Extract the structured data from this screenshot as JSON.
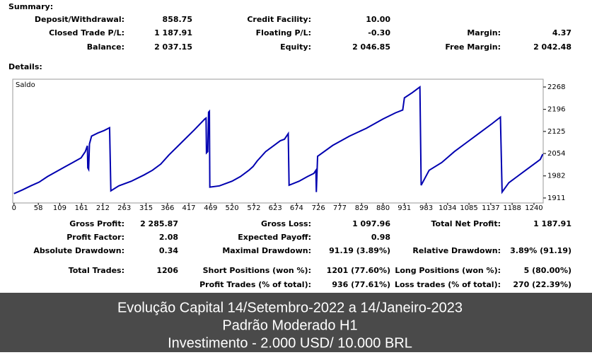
{
  "summary": {
    "title": "Summary:",
    "rows": [
      [
        {
          "label": "Deposit/Withdrawal:",
          "value": "858.75"
        },
        {
          "label": "Credit Facility:",
          "value": "10.00"
        }
      ],
      [
        {
          "label": "Closed Trade P/L:",
          "value": "1 187.91"
        },
        {
          "label": "Floating P/L:",
          "value": "-0.30"
        },
        {
          "label": "Margin:",
          "value": "4.37"
        }
      ],
      [
        {
          "label": "Balance:",
          "value": "2 037.15"
        },
        {
          "label": "Equity:",
          "value": "2 046.85"
        },
        {
          "label": "Free Margin:",
          "value": "2 042.48"
        }
      ]
    ]
  },
  "details": {
    "title": "Details:",
    "rows": [
      [
        {
          "label": "Gross Profit:",
          "value": "2 285.87"
        },
        {
          "label": "Gross Loss:",
          "value": "1 097.96"
        },
        {
          "label": "Total Net Profit:",
          "value": "1 187.91"
        }
      ],
      [
        {
          "label": "Profit Factor:",
          "value": "2.08"
        },
        {
          "label": "Expected Payoff:",
          "value": "0.98"
        }
      ],
      [
        {
          "label": "Absolute Drawdown:",
          "value": "0.34"
        },
        {
          "label": "Maximal Drawdown:",
          "value": "91.19 (3.89%)"
        },
        {
          "label": "Relative Drawdown:",
          "value": "3.89% (91.19)"
        }
      ],
      [
        {
          "label": "Total Trades:",
          "value": "1206"
        },
        {
          "label": "Short Positions (won %):",
          "value": "1201 (77.60%)"
        },
        {
          "label": "Long Positions (won %):",
          "value": "5 (80.00%)"
        }
      ],
      [
        {
          "label": "Profit Trades (% of total):",
          "value": "936 (77.61%)"
        },
        {
          "label": "Loss trades (% of total):",
          "value": "270 (22.39%)"
        }
      ]
    ]
  },
  "chart_data": {
    "type": "line",
    "x": [
      0,
      20,
      40,
      60,
      80,
      100,
      120,
      140,
      160,
      170,
      175,
      176,
      178,
      180,
      185,
      200,
      215,
      228,
      231,
      250,
      280,
      310,
      330,
      350,
      370,
      400,
      430,
      455,
      458,
      459,
      462,
      464,
      466,
      467,
      490,
      520,
      540,
      560,
      570,
      580,
      600,
      620,
      635,
      645,
      650,
      654,
      656,
      680,
      700,
      715,
      720,
      721,
      724,
      760,
      800,
      840,
      880,
      910,
      927,
      931,
      950,
      968,
      971,
      990,
      1020,
      1050,
      1080,
      1110,
      1140,
      1160,
      1164,
      1180,
      1200,
      1220,
      1240,
      1255,
      1261
    ],
    "series": [
      {
        "name": "Saldo",
        "color": "#0000b0",
        "values": [
          1925,
          1937,
          1950,
          1962,
          1980,
          1995,
          2010,
          2025,
          2040,
          2060,
          2079,
          2008,
          2003,
          2085,
          2110,
          2120,
          2128,
          2137,
          1934,
          1950,
          1965,
          1985,
          2000,
          2020,
          2050,
          2090,
          2130,
          2165,
          2168,
          2056,
          2060,
          2187,
          2190,
          1946,
          1950,
          1965,
          1980,
          2000,
          2012,
          2030,
          2060,
          2080,
          2095,
          2100,
          2110,
          2118,
          1952,
          1965,
          1980,
          1990,
          2000,
          1930,
          2045,
          2080,
          2110,
          2135,
          2165,
          2185,
          2194,
          2233,
          2250,
          2268,
          1952,
          2000,
          2025,
          2060,
          2090,
          2120,
          2150,
          2171,
          1930,
          1960,
          1980,
          2000,
          2020,
          2035,
          2052
        ]
      }
    ],
    "xlim": [
      -3,
      1262
    ],
    "ylim": [
      1895,
      2293
    ],
    "xticks": [
      0,
      58,
      109,
      161,
      212,
      263,
      315,
      366,
      417,
      469,
      520,
      572,
      623,
      674,
      726,
      777,
      829,
      880,
      931,
      983,
      1034,
      1085,
      1137,
      1188,
      1240
    ],
    "yticks": [
      1911,
      1982,
      2054,
      2125,
      2196,
      2268
    ]
  },
  "caption": {
    "lines": [
      "Evolução Capital 14/Setembro-2022 a 14/Janeiro-2023",
      "Padrão Moderado H1",
      "Investimento - 2.000 USD/ 10.000 BRL"
    ]
  }
}
